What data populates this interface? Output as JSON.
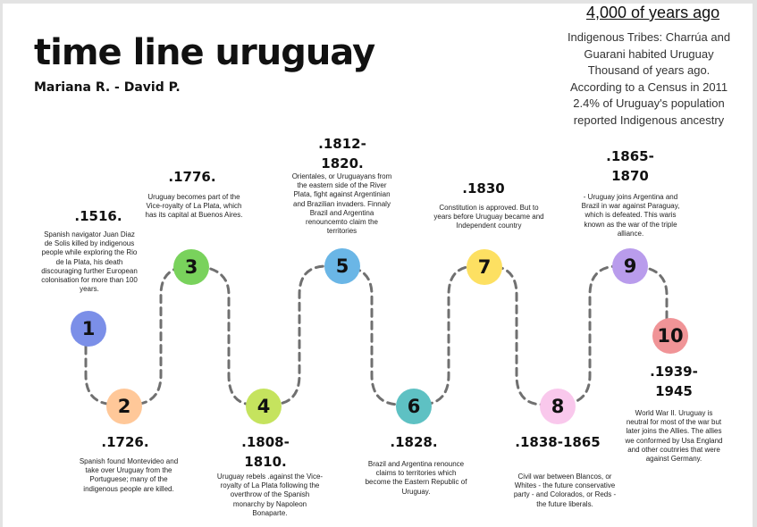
{
  "title": "time line uruguay",
  "authors": "Mariana R. - David P.",
  "ancient": {
    "heading": "4,000 of years ago",
    "text": "Indigenous Tribes: Charrúa and Guarani habited Uruguay Thousand of years ago. According to a Census in 2011 2.4% of Uruguay's population reported Indigenous ancestry"
  },
  "events": [
    {
      "number": "1",
      "year": ".1516.",
      "color": "#7b8fe8",
      "text": "Spanish navigator Juan Diaz de Solis killed by indigenous people while exploring the Rio de la Plata, his death discouraging further European colonisation for more than 100 years."
    },
    {
      "number": "2",
      "year": ".1726.",
      "color": "#ffc899",
      "text": "Spanish found Montevideo and take over Uruguay from the Portuguese; many of the indigenous people are killed."
    },
    {
      "number": "3",
      "year": ".1776.",
      "color": "#79d25c",
      "text": "Uruguay becomes part of the Vice-royalty of La Plata, which has its capital at Buenos Aires."
    },
    {
      "number": "4",
      "year": ".1808-1810.",
      "color": "#c5e35e",
      "text": "Uruguay rebels .against the Vice-royalty of La Plata following the overthrow of the Spanish monarchy by Napoleon Bonaparte."
    },
    {
      "number": "5",
      "year": ".1812-1820.",
      "color": "#6ab6e6",
      "text": "Orientales, or Uruguayans from the eastern side of the River Plata, fight against Argentinian and Brazilian invaders. Finnaly Brazil and Argentina renouncemto claim the territories"
    },
    {
      "number": "6",
      "year": ".1828.",
      "color": "#5ec1c3",
      "text": "Brazil and Argentina renounce claims to territories which become the Eastern Republic of Uruguay."
    },
    {
      "number": "7",
      "year": ".1830",
      "color": "#fde062",
      "text": "Constitution is approved. But to years before Uruguay became and Independent country"
    },
    {
      "number": "8",
      "year": ".1838-1865",
      "color": "#f9c8ec",
      "text": "Civil war between Blancos, or Whites - the future conservative party - and Colorados, or Reds - the future liberals."
    },
    {
      "number": "9",
      "year": ".1865-1870",
      "color": "#b99cec",
      "text": "- Uruguay joins Argentina and Brazil in war against Paraguay, which is defeated. This waris known as the war of the triple alliance."
    },
    {
      "number": "10",
      "year": ".1939-1945",
      "color": "#f09497",
      "text": "World War II. Uruguay is neutral for most of the war but later joins the Allies. The allies we conformed by Usa England and other coutnries that were against Germany."
    }
  ]
}
